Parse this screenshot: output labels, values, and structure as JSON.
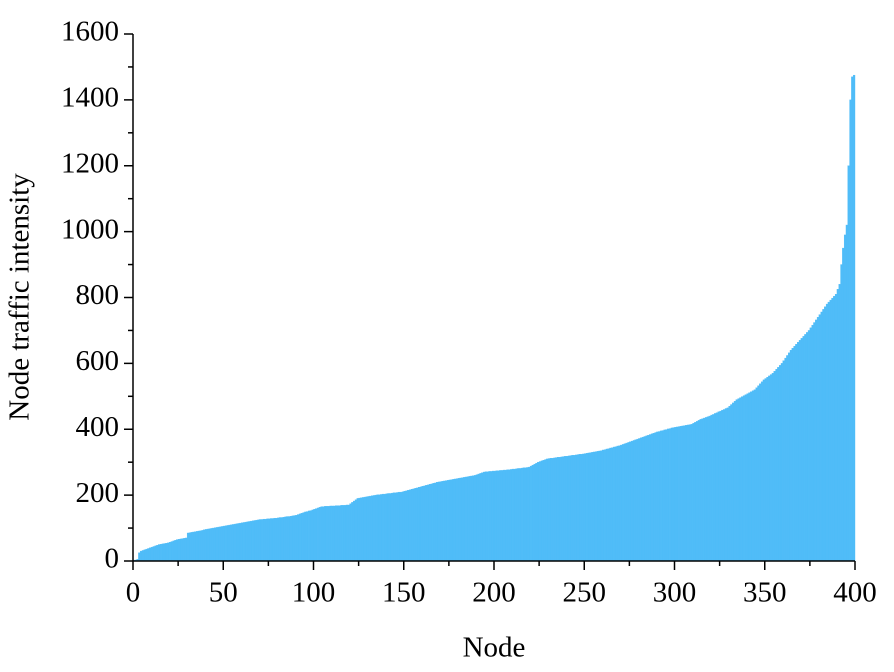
{
  "chart_data": {
    "type": "bar",
    "xlabel": "Node",
    "ylabel": "Node traffic intensity",
    "color": "#4fbcf8",
    "xlim": [
      0,
      400
    ],
    "xticks": [
      0,
      50,
      100,
      150,
      200,
      250,
      300,
      350,
      400
    ],
    "xminorticks": [
      25,
      75,
      125,
      175,
      225,
      275,
      325,
      375
    ],
    "ylim": [
      0,
      1600
    ],
    "yticks": [
      0,
      200,
      400,
      600,
      800,
      1000,
      1200,
      1400,
      1600
    ],
    "yminorticks": [
      100,
      300,
      500,
      700,
      900,
      1100,
      1300,
      1500
    ],
    "x": [
      1,
      2,
      3,
      4,
      5,
      6,
      7,
      8,
      9,
      10,
      11,
      12,
      13,
      14,
      15,
      16,
      17,
      18,
      19,
      20,
      21,
      22,
      23,
      24,
      25,
      26,
      27,
      28,
      29,
      30,
      31,
      32,
      33,
      34,
      35,
      36,
      37,
      38,
      39,
      40,
      41,
      42,
      43,
      44,
      45,
      46,
      47,
      48,
      49,
      50,
      51,
      52,
      53,
      54,
      55,
      56,
      57,
      58,
      59,
      60,
      61,
      62,
      63,
      64,
      65,
      66,
      67,
      68,
      69,
      70,
      71,
      72,
      73,
      74,
      75,
      76,
      77,
      78,
      79,
      80,
      81,
      82,
      83,
      84,
      85,
      86,
      87,
      88,
      89,
      90,
      91,
      92,
      93,
      94,
      95,
      96,
      97,
      98,
      99,
      100,
      101,
      102,
      103,
      104,
      105,
      106,
      107,
      108,
      109,
      110,
      111,
      112,
      113,
      114,
      115,
      116,
      117,
      118,
      119,
      120,
      121,
      122,
      123,
      124,
      125,
      126,
      127,
      128,
      129,
      130,
      131,
      132,
      133,
      134,
      135,
      136,
      137,
      138,
      139,
      140,
      141,
      142,
      143,
      144,
      145,
      146,
      147,
      148,
      149,
      150,
      151,
      152,
      153,
      154,
      155,
      156,
      157,
      158,
      159,
      160,
      161,
      162,
      163,
      164,
      165,
      166,
      167,
      168,
      169,
      170,
      171,
      172,
      173,
      174,
      175,
      176,
      177,
      178,
      179,
      180,
      181,
      182,
      183,
      184,
      185,
      186,
      187,
      188,
      189,
      190,
      191,
      192,
      193,
      194,
      195,
      196,
      197,
      198,
      199,
      200,
      201,
      202,
      203,
      204,
      205,
      206,
      207,
      208,
      209,
      210,
      211,
      212,
      213,
      214,
      215,
      216,
      217,
      218,
      219,
      220,
      221,
      222,
      223,
      224,
      225,
      226,
      227,
      228,
      229,
      230,
      231,
      232,
      233,
      234,
      235,
      236,
      237,
      238,
      239,
      240,
      241,
      242,
      243,
      244,
      245,
      246,
      247,
      248,
      249,
      250,
      251,
      252,
      253,
      254,
      255,
      256,
      257,
      258,
      259,
      260,
      261,
      262,
      263,
      264,
      265,
      266,
      267,
      268,
      269,
      270,
      271,
      272,
      273,
      274,
      275,
      276,
      277,
      278,
      279,
      280,
      281,
      282,
      283,
      284,
      285,
      286,
      287,
      288,
      289,
      290,
      291,
      292,
      293,
      294,
      295,
      296,
      297,
      298,
      299,
      300,
      301,
      302,
      303,
      304,
      305,
      306,
      307,
      308,
      309,
      310,
      311,
      312,
      313,
      314,
      315,
      316,
      317,
      318,
      319,
      320,
      321,
      322,
      323,
      324,
      325,
      326,
      327,
      328,
      329,
      330,
      331,
      332,
      333,
      334,
      335,
      336,
      337,
      338,
      339,
      340,
      341,
      342,
      343,
      344,
      345,
      346,
      347,
      348,
      349,
      350,
      351,
      352,
      353,
      354,
      355,
      356,
      357,
      358,
      359,
      360,
      361,
      362,
      363,
      364,
      365,
      366,
      367,
      368,
      369,
      370,
      371,
      372,
      373,
      374,
      375,
      376,
      377,
      378,
      379,
      380,
      381,
      382,
      383,
      384,
      385,
      386,
      387,
      388,
      389,
      390,
      391,
      392,
      393,
      394,
      395,
      396,
      397,
      398,
      399,
      400
    ],
    "values": [
      2,
      3,
      5,
      25,
      30,
      32,
      34,
      36,
      38,
      40,
      42,
      44,
      46,
      48,
      50,
      51,
      52,
      53,
      54,
      55,
      57,
      59,
      61,
      63,
      65,
      66,
      67,
      68,
      69,
      70,
      85,
      86,
      87,
      88,
      89,
      90,
      91,
      92,
      93,
      95,
      96,
      97,
      98,
      99,
      100,
      101,
      102,
      103,
      104,
      105,
      106,
      107,
      108,
      109,
      110,
      111,
      112,
      113,
      114,
      115,
      116,
      117,
      118,
      119,
      120,
      121,
      122,
      123,
      124,
      125,
      126,
      126,
      127,
      127,
      128,
      128,
      129,
      129,
      130,
      130,
      131,
      132,
      132,
      133,
      134,
      135,
      135,
      136,
      137,
      138,
      139,
      141,
      143,
      145,
      147,
      149,
      150,
      152,
      153,
      155,
      157,
      159,
      161,
      163,
      165,
      165,
      166,
      166,
      166,
      167,
      167,
      167,
      168,
      168,
      168,
      169,
      169,
      169,
      170,
      170,
      174,
      178,
      182,
      186,
      190,
      191,
      192,
      193,
      194,
      195,
      196,
      197,
      198,
      199,
      200,
      201,
      201,
      202,
      203,
      203,
      204,
      205,
      205,
      206,
      207,
      207,
      208,
      209,
      209,
      210,
      212,
      213,
      215,
      216,
      218,
      219,
      221,
      222,
      224,
      225,
      227,
      228,
      230,
      231,
      233,
      234,
      236,
      237,
      239,
      240,
      241,
      242,
      243,
      244,
      245,
      246,
      247,
      248,
      249,
      250,
      251,
      252,
      253,
      254,
      255,
      256,
      257,
      258,
      259,
      260,
      262,
      264,
      266,
      268,
      270,
      271,
      271,
      272,
      272,
      273,
      273,
      274,
      274,
      275,
      275,
      276,
      276,
      277,
      277,
      278,
      279,
      279,
      280,
      281,
      281,
      282,
      283,
      283,
      284,
      285,
      288,
      291,
      294,
      297,
      300,
      302,
      304,
      306,
      308,
      310,
      311,
      312,
      312,
      313,
      314,
      315,
      315,
      316,
      317,
      318,
      318,
      319,
      320,
      321,
      321,
      322,
      323,
      324,
      324,
      325,
      326,
      327,
      328,
      329,
      330,
      331,
      332,
      333,
      334,
      335,
      337,
      338,
      340,
      341,
      343,
      344,
      346,
      347,
      349,
      350,
      352,
      354,
      356,
      358,
      360,
      362,
      364,
      366,
      368,
      370,
      372,
      374,
      376,
      378,
      380,
      382,
      384,
      386,
      388,
      390,
      392,
      393,
      395,
      396,
      398,
      399,
      401,
      402,
      404,
      405,
      406,
      407,
      408,
      409,
      410,
      411,
      412,
      413,
      414,
      415,
      418,
      421,
      424,
      427,
      430,
      432,
      434,
      436,
      438,
      440,
      443,
      445,
      448,
      450,
      453,
      455,
      458,
      460,
      463,
      465,
      470,
      475,
      480,
      485,
      490,
      493,
      496,
      499,
      502,
      505,
      508,
      511,
      514,
      517,
      520,
      526,
      532,
      538,
      544,
      550,
      554,
      558,
      562,
      566,
      570,
      576,
      582,
      588,
      594,
      600,
      608,
      616,
      624,
      632,
      640,
      646,
      652,
      658,
      664,
      670,
      676,
      682,
      688,
      694,
      700,
      708,
      716,
      724,
      732,
      740,
      748,
      756,
      764,
      772,
      780,
      786,
      792,
      798,
      804,
      810,
      825,
      840,
      900,
      950,
      990,
      1020,
      1200,
      1400,
      1470,
      1475
    ]
  }
}
